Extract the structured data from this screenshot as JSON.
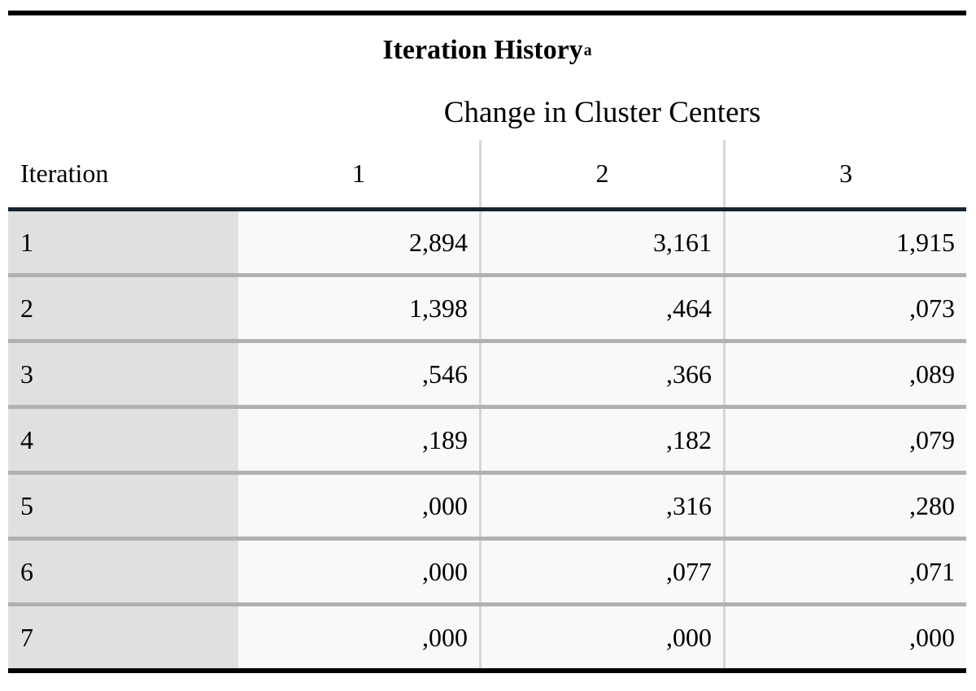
{
  "title": {
    "text": "Iteration History",
    "footnote_mark": "a"
  },
  "spanner": "Change in Cluster Centers",
  "table": {
    "stub_header": "Iteration",
    "column_headers": [
      "1",
      "2",
      "3"
    ],
    "rows": [
      {
        "iteration": "1",
        "values": [
          "2,894",
          "3,161",
          "1,915"
        ]
      },
      {
        "iteration": "2",
        "values": [
          "1,398",
          ",464",
          ",073"
        ]
      },
      {
        "iteration": "3",
        "values": [
          ",546",
          ",366",
          ",089"
        ]
      },
      {
        "iteration": "4",
        "values": [
          ",189",
          ",182",
          ",079"
        ]
      },
      {
        "iteration": "5",
        "values": [
          ",000",
          ",316",
          ",280"
        ]
      },
      {
        "iteration": "6",
        "values": [
          ",000",
          ",077",
          ",071"
        ]
      },
      {
        "iteration": "7",
        "values": [
          ",000",
          ",000",
          ",000"
        ]
      }
    ]
  },
  "chart_data": {
    "type": "table",
    "title": "Iteration History",
    "column_group_label": "Change in Cluster Centers",
    "columns": [
      "Iteration",
      "1",
      "2",
      "3"
    ],
    "rows_numeric": [
      [
        1,
        2.894,
        3.161,
        1.915
      ],
      [
        2,
        1.398,
        0.464,
        0.073
      ],
      [
        3,
        0.546,
        0.366,
        0.089
      ],
      [
        4,
        0.189,
        0.182,
        0.079
      ],
      [
        5,
        0.0,
        0.316,
        0.28
      ],
      [
        6,
        0.0,
        0.077,
        0.071
      ],
      [
        7,
        0.0,
        0.0,
        0.0
      ]
    ],
    "decimal_separator": ","
  },
  "colors": {
    "top_bottom_border": "#000000",
    "header_rule": "#18242f",
    "row_separator": "#b0b1b3",
    "column_line": "#d5d7d9",
    "stub_background": "#e0e0e0",
    "cell_background": "#f8f9fa"
  }
}
